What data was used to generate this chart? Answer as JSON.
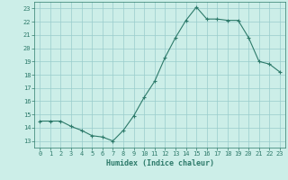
{
  "x": [
    0,
    1,
    2,
    3,
    4,
    5,
    6,
    7,
    8,
    9,
    10,
    11,
    12,
    13,
    14,
    15,
    16,
    17,
    18,
    19,
    20,
    21,
    22,
    23
  ],
  "y": [
    14.5,
    14.5,
    14.5,
    14.1,
    13.8,
    13.4,
    13.3,
    13.0,
    13.8,
    14.9,
    16.3,
    17.5,
    19.3,
    20.8,
    22.1,
    23.1,
    22.2,
    22.2,
    22.1,
    22.1,
    20.8,
    19.0,
    18.8,
    18.2
  ],
  "xlabel": "Humidex (Indice chaleur)",
  "line_color": "#2d7a6a",
  "marker": "+",
  "bg_color": "#cceee8",
  "grid_color": "#99cccc",
  "tick_color": "#2d7a6a",
  "label_color": "#2d7a6a",
  "xlim": [
    -0.5,
    23.5
  ],
  "ylim": [
    12.5,
    23.5
  ],
  "yticks": [
    13,
    14,
    15,
    16,
    17,
    18,
    19,
    20,
    21,
    22,
    23
  ],
  "xticks": [
    0,
    1,
    2,
    3,
    4,
    5,
    6,
    7,
    8,
    9,
    10,
    11,
    12,
    13,
    14,
    15,
    16,
    17,
    18,
    19,
    20,
    21,
    22,
    23
  ],
  "tick_fontsize": 5,
  "xlabel_fontsize": 6,
  "linewidth": 0.8,
  "markersize": 3,
  "markeredgewidth": 0.8
}
